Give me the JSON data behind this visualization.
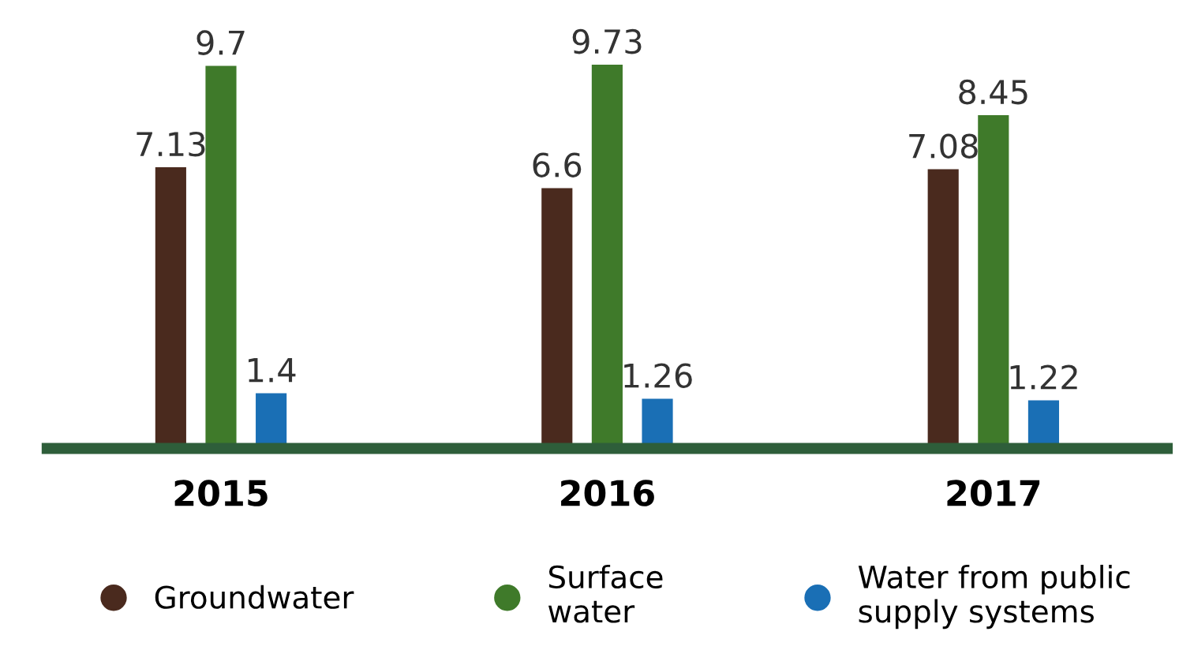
{
  "chart_data": {
    "type": "bar",
    "categories": [
      "2015",
      "2016",
      "2017"
    ],
    "series": [
      {
        "name": "Groundwater",
        "color": "#4a2a1e",
        "values": [
          7.13,
          6.6,
          7.08
        ]
      },
      {
        "name": "Surface water",
        "color": "#3f7a2a",
        "values": [
          9.7,
          9.73,
          8.45
        ]
      },
      {
        "name": "Water from public supply systems",
        "color": "#1a6fb5",
        "values": [
          1.4,
          1.26,
          1.22
        ]
      }
    ],
    "data_labels": true,
    "tick_labels": "x",
    "grid": false,
    "legend": "bottom"
  }
}
